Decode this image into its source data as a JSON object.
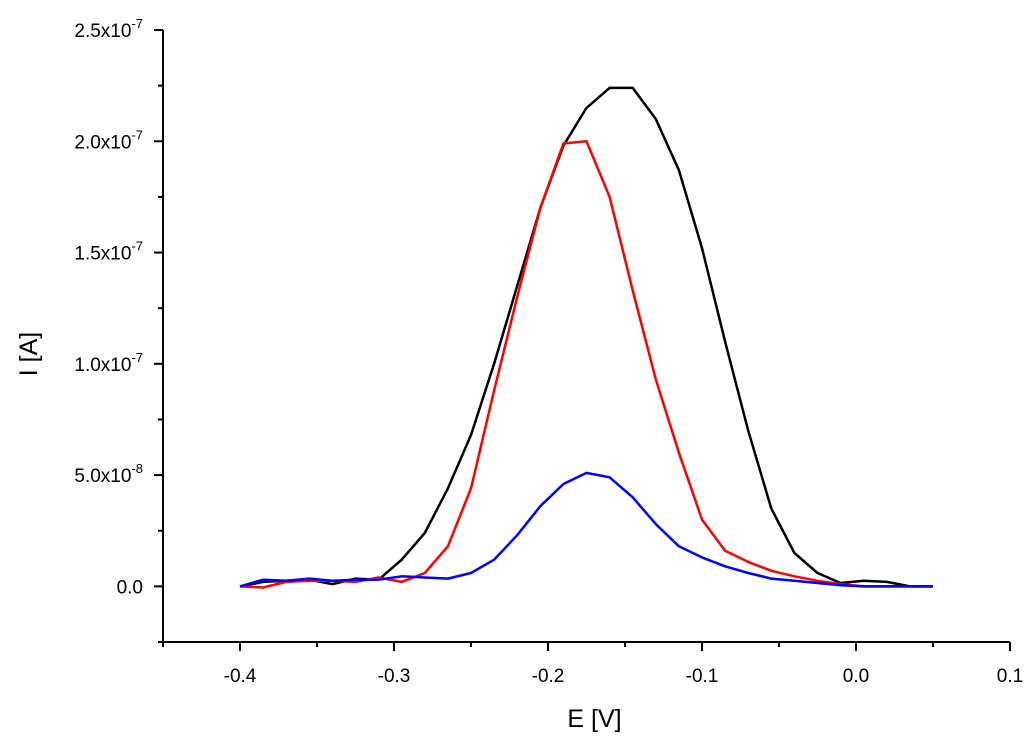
{
  "chart_data": {
    "type": "line",
    "title": "",
    "xlabel": "E [V]",
    "ylabel": "I [A]",
    "xlim": [
      -0.45,
      0.1
    ],
    "ylim": [
      -2.5e-08,
      2.5e-07
    ],
    "grid": false,
    "x_ticks": [
      {
        "value": -0.4,
        "label": "-0.4"
      },
      {
        "value": -0.3,
        "label": "-0.3"
      },
      {
        "value": -0.2,
        "label": "-0.2"
      },
      {
        "value": -0.1,
        "label": "-0.1"
      },
      {
        "value": 0.0,
        "label": "0.0"
      },
      {
        "value": 0.1,
        "label": "0.1"
      }
    ],
    "y_ticks": [
      {
        "value": 0,
        "mantissa": "0.0",
        "exponent": ""
      },
      {
        "value": 5e-08,
        "mantissa": "5.0x10",
        "exponent": "-8"
      },
      {
        "value": 1e-07,
        "mantissa": "1.0x10",
        "exponent": "-7"
      },
      {
        "value": 1.5e-07,
        "mantissa": "1.5x10",
        "exponent": "-7"
      },
      {
        "value": 2e-07,
        "mantissa": "2.0x10",
        "exponent": "-7"
      },
      {
        "value": 2.5e-07,
        "mantissa": "2.5x10",
        "exponent": "-7"
      }
    ],
    "series": [
      {
        "color": "#000000",
        "x": [
          -0.4,
          -0.385,
          -0.37,
          -0.355,
          -0.34,
          -0.325,
          -0.31,
          -0.295,
          -0.28,
          -0.265,
          -0.25,
          -0.235,
          -0.22,
          -0.205,
          -0.19,
          -0.175,
          -0.16,
          -0.145,
          -0.13,
          -0.115,
          -0.1,
          -0.085,
          -0.07,
          -0.055,
          -0.04,
          -0.025,
          -0.01,
          0.005,
          0.02,
          0.035,
          0.05
        ],
        "y": [
          0,
          2e-09,
          2.5e-09,
          3e-09,
          1e-09,
          3.5e-09,
          3e-09,
          1.2e-08,
          2.4e-08,
          4.4e-08,
          6.8e-08,
          1e-07,
          1.35e-07,
          1.7e-07,
          1.98e-07,
          2.15e-07,
          2.24e-07,
          2.24e-07,
          2.1e-07,
          1.87e-07,
          1.52e-07,
          1.1e-07,
          7e-08,
          3.5e-08,
          1.5e-08,
          6e-09,
          1.5e-09,
          2.5e-09,
          2e-09,
          0,
          0
        ]
      },
      {
        "color": "#ff0000",
        "x": [
          -0.4,
          -0.385,
          -0.37,
          -0.355,
          -0.34,
          -0.325,
          -0.31,
          -0.295,
          -0.28,
          -0.265,
          -0.25,
          -0.235,
          -0.22,
          -0.205,
          -0.19,
          -0.175,
          -0.16,
          -0.145,
          -0.13,
          -0.115,
          -0.1,
          -0.085,
          -0.07,
          -0.055,
          -0.04,
          -0.025,
          -0.01,
          0.005,
          0.02,
          0.035,
          0.05
        ],
        "y": [
          0,
          -5e-10,
          2e-09,
          2.5e-09,
          2.5e-09,
          2e-09,
          4e-09,
          2e-09,
          6e-09,
          1.8e-08,
          4.4e-08,
          8.8e-08,
          1.3e-07,
          1.7e-07,
          1.99e-07,
          2e-07,
          1.75e-07,
          1.33e-07,
          9.3e-08,
          6e-08,
          3e-08,
          1.6e-08,
          1.1e-08,
          7e-09,
          4.5e-09,
          2.5e-09,
          1e-09,
          0,
          0,
          0,
          0
        ]
      },
      {
        "color": "#0000ff",
        "x": [
          -0.4,
          -0.385,
          -0.37,
          -0.355,
          -0.34,
          -0.325,
          -0.31,
          -0.295,
          -0.28,
          -0.265,
          -0.25,
          -0.235,
          -0.22,
          -0.205,
          -0.19,
          -0.175,
          -0.16,
          -0.145,
          -0.13,
          -0.115,
          -0.1,
          -0.085,
          -0.07,
          -0.055,
          -0.04,
          -0.025,
          -0.01,
          0.005,
          0.02,
          0.035,
          0.05
        ],
        "y": [
          0,
          3e-09,
          2.5e-09,
          3.5e-09,
          2.5e-09,
          3e-09,
          3e-09,
          4.5e-09,
          4e-09,
          3.5e-09,
          6e-09,
          1.2e-08,
          2.3e-08,
          3.6e-08,
          4.6e-08,
          5.1e-08,
          4.9e-08,
          4e-08,
          2.8e-08,
          1.8e-08,
          1.3e-08,
          9e-09,
          6e-09,
          3.5e-09,
          2.5e-09,
          1.5e-09,
          5e-10,
          0,
          0,
          0,
          0
        ]
      }
    ]
  }
}
